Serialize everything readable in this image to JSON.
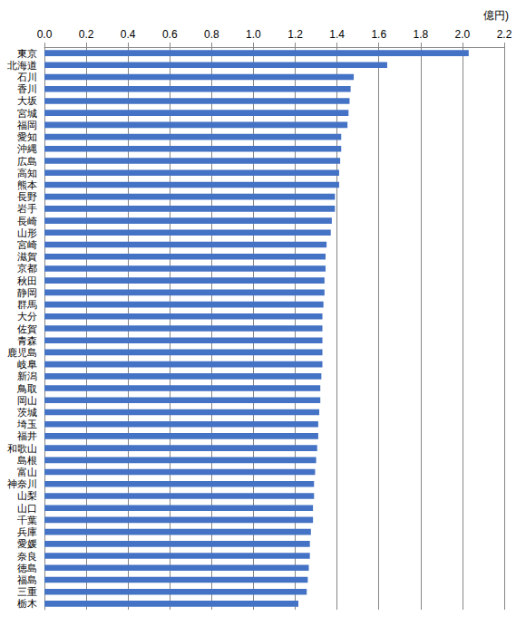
{
  "chart_data": {
    "type": "bar",
    "orientation": "horizontal",
    "xlabel": "億円)",
    "categories": [
      "東京",
      "北海道",
      "石川",
      "香川",
      "大坂",
      "宮城",
      "福岡",
      "愛知",
      "沖縄",
      "広島",
      "高知",
      "熊本",
      "長野",
      "岩手",
      "長崎",
      "山形",
      "宮崎",
      "滋賀",
      "京都",
      "秋田",
      "静岡",
      "群馬",
      "大分",
      "佐賀",
      "青森",
      "鹿児島",
      "岐阜",
      "新潟",
      "鳥取",
      "岡山",
      "茨城",
      "埼玉",
      "福井",
      "和歌山",
      "島根",
      "富山",
      "神奈川",
      "山梨",
      "山口",
      "千葉",
      "兵庫",
      "愛媛",
      "奈良",
      "徳島",
      "福島",
      "三重",
      "栃木"
    ],
    "values": [
      2.03,
      1.64,
      1.48,
      1.465,
      1.46,
      1.455,
      1.45,
      1.42,
      1.42,
      1.415,
      1.41,
      1.41,
      1.39,
      1.39,
      1.375,
      1.37,
      1.35,
      1.345,
      1.345,
      1.34,
      1.34,
      1.335,
      1.33,
      1.33,
      1.33,
      1.33,
      1.33,
      1.325,
      1.32,
      1.32,
      1.315,
      1.31,
      1.31,
      1.305,
      1.3,
      1.295,
      1.29,
      1.29,
      1.285,
      1.285,
      1.275,
      1.27,
      1.27,
      1.265,
      1.26,
      1.255,
      1.215
    ],
    "color": "#4472c4",
    "xlim": [
      0,
      2.2
    ],
    "xticks": [
      {
        "value": 0,
        "label": "0.0"
      },
      0.2,
      0.4,
      0.6,
      0.8,
      {
        "value": 1,
        "label": "1.0"
      },
      1.2,
      1.4,
      1.6,
      1.8,
      {
        "value": 2,
        "label": "2.0"
      },
      2.2
    ],
    "grid": true
  }
}
